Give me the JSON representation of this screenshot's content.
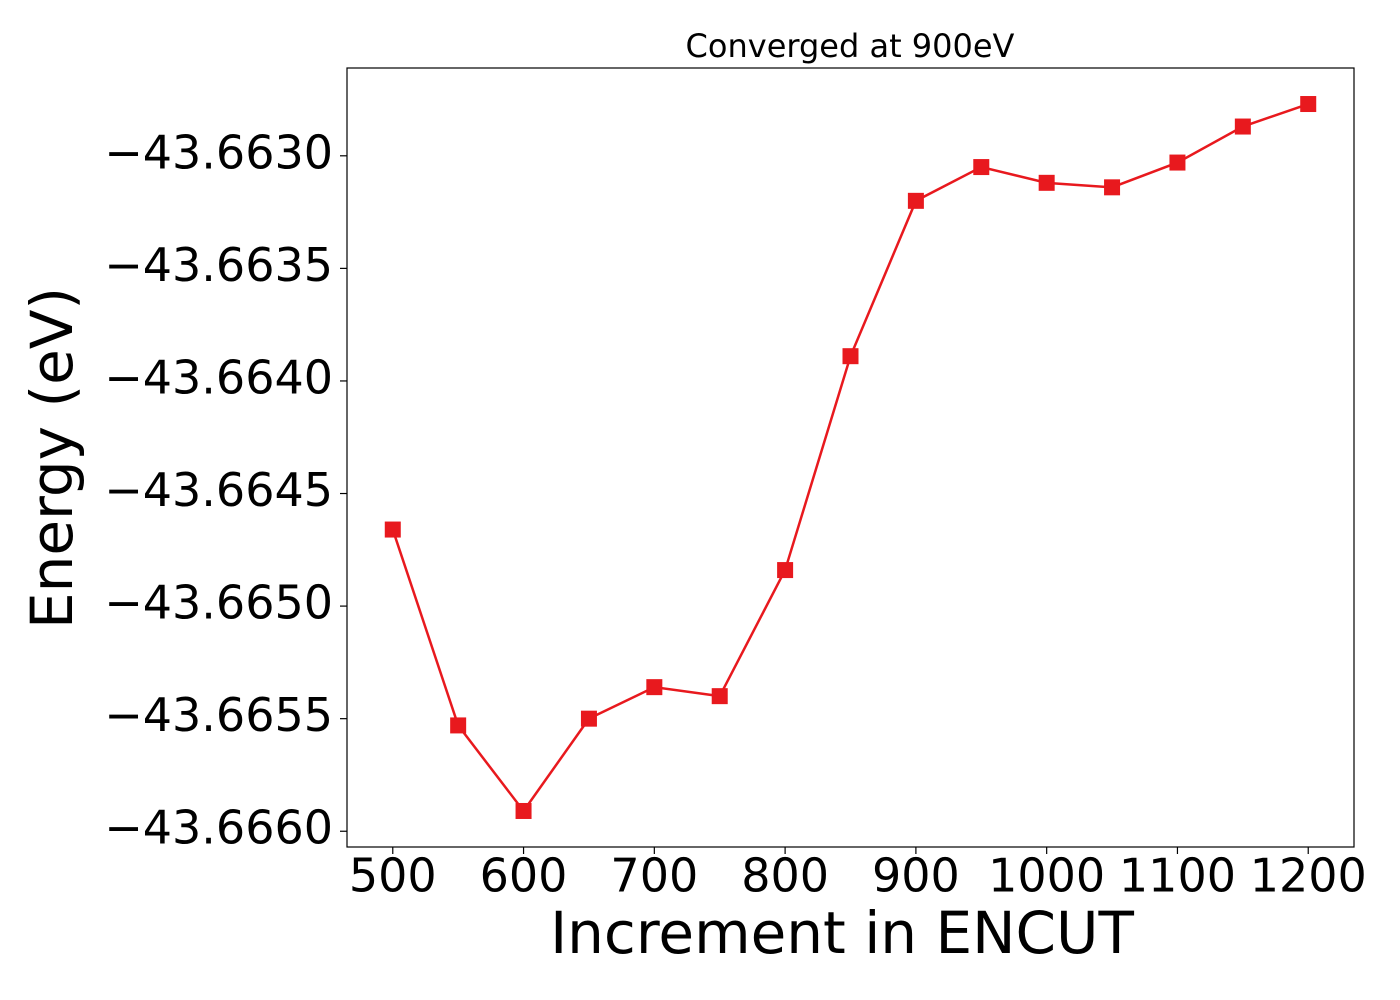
{
  "chart_data": {
    "type": "line",
    "title": "Converged at 900eV",
    "xlabel": "Increment in ENCUT",
    "ylabel": "Energy (eV)",
    "x": [
      500,
      550,
      600,
      650,
      700,
      750,
      800,
      850,
      900,
      950,
      1000,
      1050,
      1100,
      1150,
      1200
    ],
    "series": [
      {
        "color": "#e8191e",
        "marker": "square",
        "values": [
          -43.66466,
          -43.66553,
          -43.66591,
          -43.6655,
          -43.66536,
          -43.6654,
          -43.66484,
          -43.66389,
          -43.6632,
          -43.66305,
          -43.66312,
          -43.66314,
          -43.66303,
          -43.66287,
          -43.66277
        ]
      }
    ],
    "xlim": [
      465,
      1235
    ],
    "ylim": [
      -43.66607,
      -43.66261
    ],
    "xticks": [
      500,
      600,
      700,
      800,
      900,
      1000,
      1100,
      1200
    ],
    "yticks": [
      {
        "value": -43.666,
        "label": "−43.6660"
      },
      {
        "value": -43.6655,
        "label": "−43.6655"
      },
      {
        "value": -43.665,
        "label": "−43.6650"
      },
      {
        "value": -43.6645,
        "label": "−43.6645"
      },
      {
        "value": -43.664,
        "label": "−43.6640"
      },
      {
        "value": -43.6635,
        "label": "−43.6635"
      },
      {
        "value": -43.663,
        "label": "−43.6630"
      }
    ],
    "grid": false
  }
}
